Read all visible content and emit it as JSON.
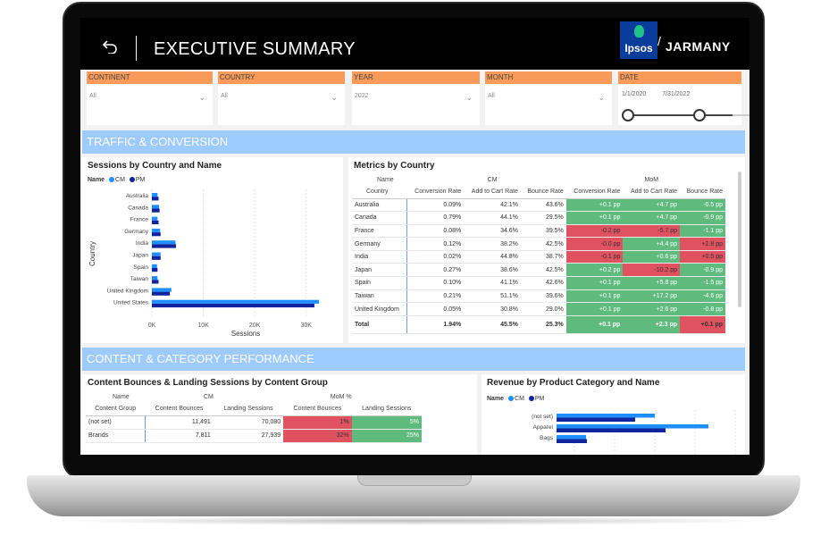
{
  "header": {
    "title": "EXECUTIVE SUMMARY",
    "logo_text": "Ipsos",
    "brand": "JARMANY"
  },
  "colors": {
    "cm": "#1f8fff",
    "pm": "#12239e",
    "good": "#5fba7d",
    "bad": "#e05260",
    "filter_label": "#f89b5a",
    "section": "#9ecbff"
  },
  "filters": [
    {
      "label": "CONTINENT",
      "value": "All"
    },
    {
      "label": "COUNTRY",
      "value": "All"
    },
    {
      "label": "YEAR",
      "value": "2022"
    },
    {
      "label": "MONTH",
      "value": "All"
    },
    {
      "label": "DATE",
      "start": "1/1/2020",
      "end": "7/31/2022"
    }
  ],
  "sections": {
    "traffic": "TRAFFIC & CONVERSION",
    "content": "CONTENT & CATEGORY PERFORMANCE"
  },
  "legend": {
    "name_label": "Name",
    "cm": "CM",
    "pm": "PM"
  },
  "sessions_chart": {
    "title": "Sessions by Country and Name",
    "chart_data": {
      "type": "bar",
      "orientation": "horizontal",
      "categories": [
        "Australia",
        "Canada",
        "France",
        "Germany",
        "India",
        "Japan",
        "Spain",
        "Taiwan",
        "United Kingdom",
        "United States"
      ],
      "series": [
        {
          "name": "CM",
          "values": [
            1100,
            1400,
            1100,
            1600,
            4600,
            1700,
            1000,
            1100,
            3800,
            32500
          ]
        },
        {
          "name": "PM",
          "values": [
            1300,
            1500,
            1300,
            1700,
            4700,
            1700,
            1100,
            1300,
            3500,
            31600
          ]
        }
      ],
      "xlabel": "Sessions",
      "ylabel": "Country",
      "xticks": [
        "0K",
        "10K",
        "20K",
        "30K"
      ],
      "xlim": [
        0,
        33000
      ]
    }
  },
  "metrics": {
    "title": "Metrics by Country",
    "group_name": "Name",
    "group_cm": "CM",
    "group_mom": "MoM",
    "columns": [
      "Country",
      "Conversion Rate",
      "Add to Cart Rate",
      "Bounce Rate",
      "Conversion Rate",
      "Add to Cart Rate",
      "Bounce Rate"
    ],
    "rows": [
      {
        "country": "Australia",
        "cr": "0.09%",
        "atc": "42.1%",
        "br": "43.6%",
        "mcr": "+0.1 pp",
        "matc": "+4.7 pp",
        "mbr": "-0.5 pp",
        "s": [
          "g",
          "g",
          "g"
        ]
      },
      {
        "country": "Canada",
        "cr": "0.79%",
        "atc": "44.1%",
        "br": "29.5%",
        "mcr": "+0.1 pp",
        "matc": "+4.7 pp",
        "mbr": "-0.9 pp",
        "s": [
          "g",
          "g",
          "g"
        ]
      },
      {
        "country": "France",
        "cr": "0.08%",
        "atc": "34.6%",
        "br": "39.5%",
        "mcr": "-0.2 pp",
        "matc": "-5.7 pp",
        "mbr": "-1.1 pp",
        "s": [
          "r",
          "r",
          "g"
        ]
      },
      {
        "country": "Germany",
        "cr": "0.12%",
        "atc": "38.2%",
        "br": "42.5%",
        "mcr": "-0.0 pp",
        "matc": "+4.4 pp",
        "mbr": "+2.8 pp",
        "s": [
          "r",
          "g",
          "r"
        ]
      },
      {
        "country": "India",
        "cr": "0.02%",
        "atc": "44.8%",
        "br": "38.7%",
        "mcr": "-0.1 pp",
        "matc": "+0.6 pp",
        "mbr": "+0.5 pp",
        "s": [
          "r",
          "g",
          "r"
        ]
      },
      {
        "country": "Japan",
        "cr": "0.27%",
        "atc": "38.6%",
        "br": "42.5%",
        "mcr": "+0.2 pp",
        "matc": "-10.2 pp",
        "mbr": "-0.9 pp",
        "s": [
          "g",
          "r",
          "g"
        ]
      },
      {
        "country": "Spain",
        "cr": "0.10%",
        "atc": "41.1%",
        "br": "42.6%",
        "mcr": "+0.1 pp",
        "matc": "+5.8 pp",
        "mbr": "-1.5 pp",
        "s": [
          "g",
          "g",
          "g"
        ]
      },
      {
        "country": "Taiwan",
        "cr": "0.21%",
        "atc": "51.1%",
        "br": "39.6%",
        "mcr": "+0.1 pp",
        "matc": "+17.2 pp",
        "mbr": "-4.6 pp",
        "s": [
          "g",
          "g",
          "g"
        ]
      },
      {
        "country": "United Kingdom",
        "cr": "0.05%",
        "atc": "30.8%",
        "br": "29.0%",
        "mcr": "+0.1 pp",
        "matc": "+2.6 pp",
        "mbr": "-0.8 pp",
        "s": [
          "g",
          "g",
          "g"
        ]
      }
    ],
    "total": {
      "country": "Total",
      "cr": "1.94%",
      "atc": "45.5%",
      "br": "25.3%",
      "mcr": "+0.1 pp",
      "matc": "+2.3 pp",
      "mbr": "+0.1 pp",
      "s": [
        "g",
        "g",
        "r"
      ]
    }
  },
  "bounces": {
    "title": "Content Bounces & Landing Sessions by Content Group",
    "group_name": "Name",
    "group_cm": "CM",
    "group_mom": "MoM %",
    "columns": [
      "Content Group",
      "Content Bounces",
      "Landing Sessions",
      "Content Bounces",
      "Landing Sessions"
    ],
    "rows": [
      {
        "group": "(not set)",
        "cb": "11,491",
        "ls": "70,080",
        "mcb": "1%",
        "mls": "5%",
        "s": [
          "r",
          "g"
        ]
      },
      {
        "group": "Brands",
        "cb": "7,811",
        "ls": "27,939",
        "mcb": "32%",
        "mls": "25%",
        "s": [
          "r",
          "g"
        ]
      }
    ]
  },
  "revenue_chart": {
    "title": "Revenue by Product Category and Name",
    "chart_data": {
      "type": "bar",
      "orientation": "horizontal",
      "categories": [
        "(not set)",
        "Apparel",
        "Bags"
      ],
      "series": [
        {
          "name": "CM",
          "values": [
            110,
            170,
            33
          ]
        },
        {
          "name": "PM",
          "values": [
            88,
            122,
            34
          ]
        }
      ]
    }
  }
}
